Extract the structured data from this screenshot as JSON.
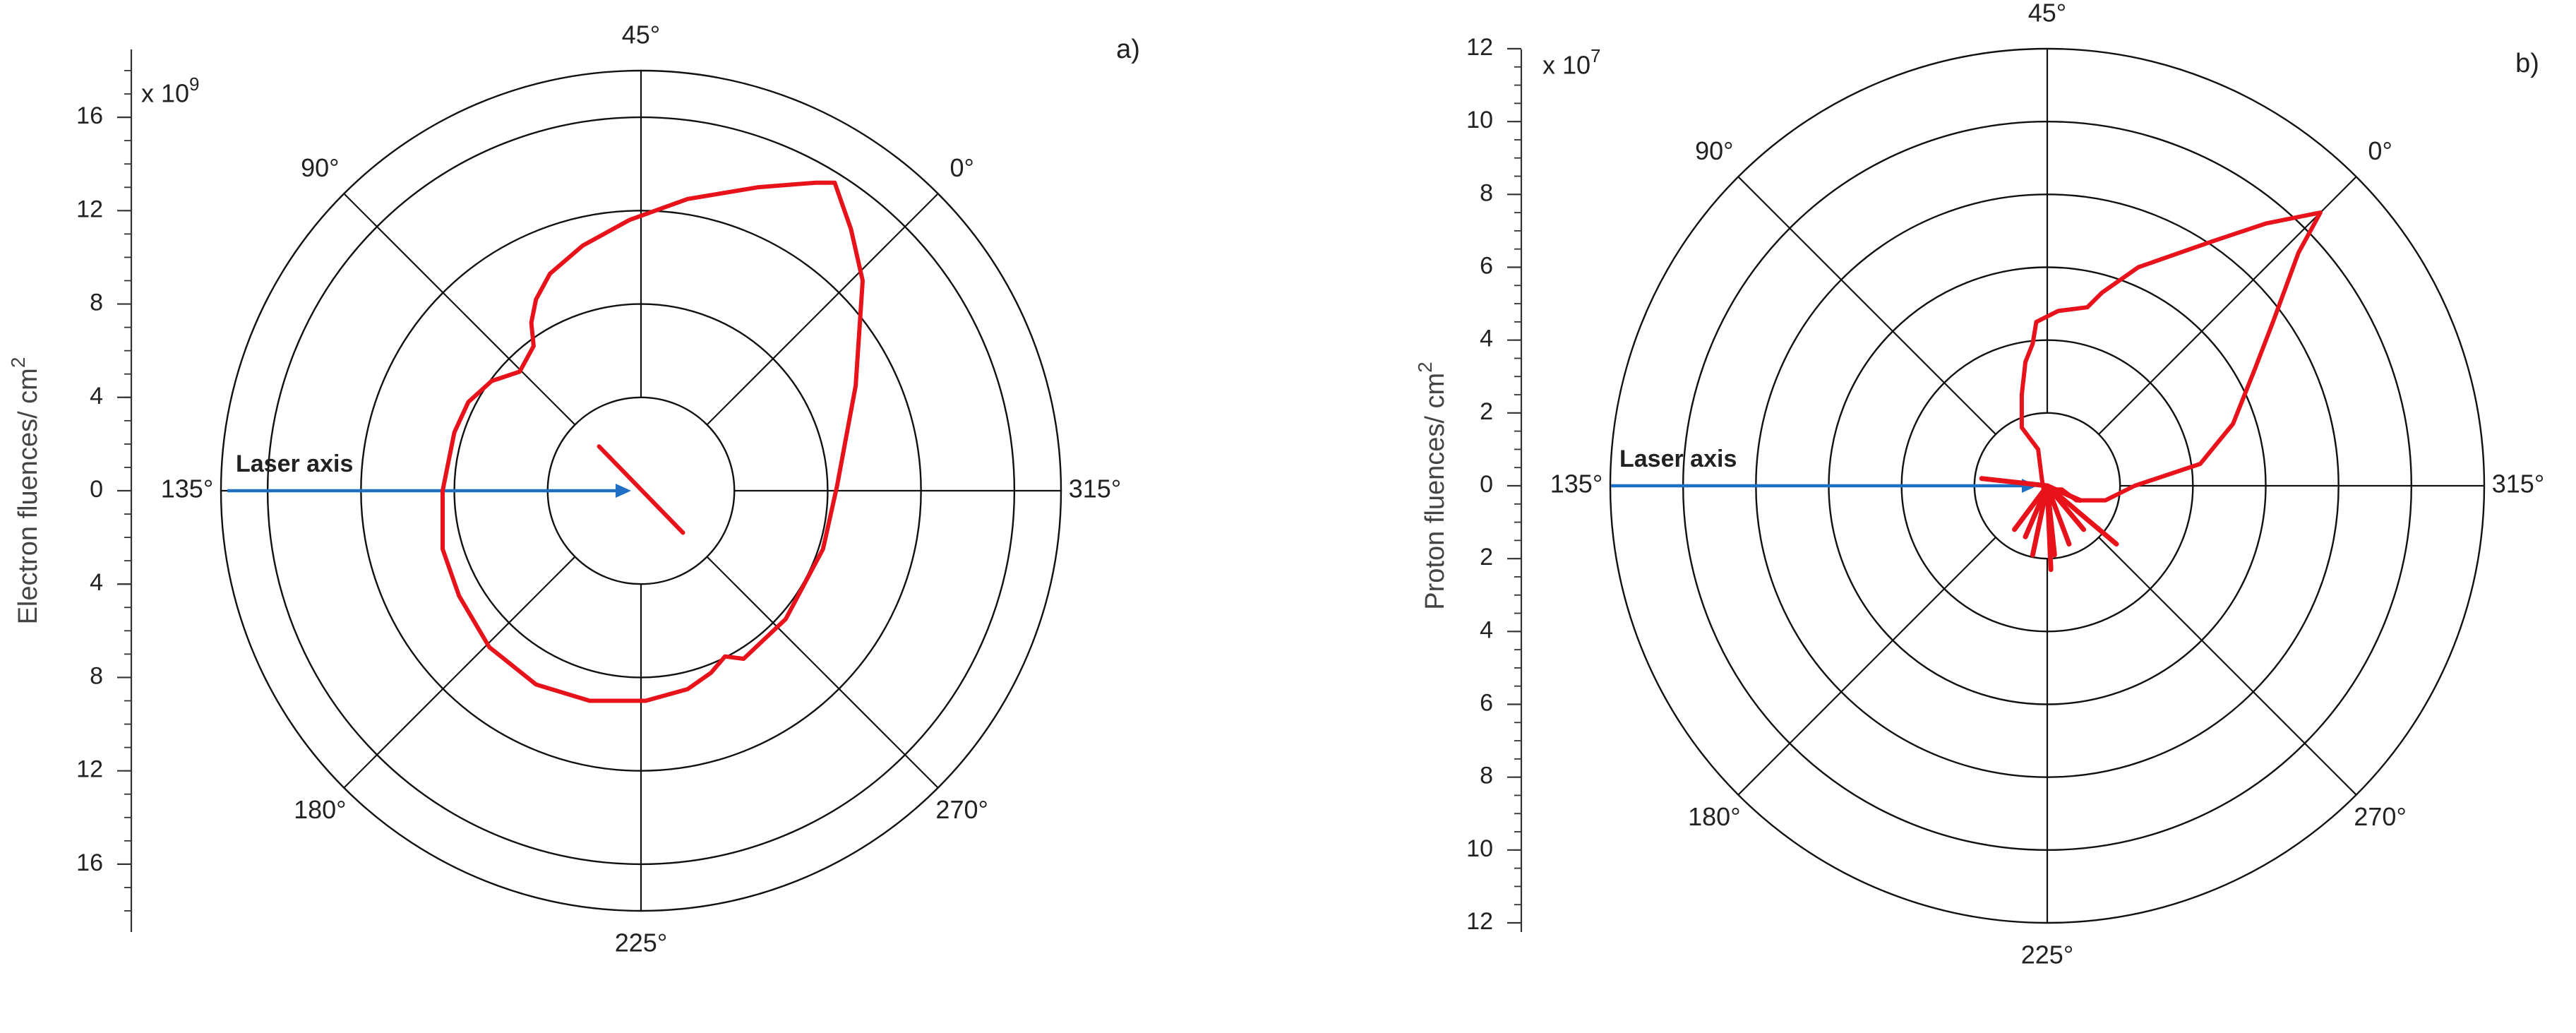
{
  "chart_data": [
    {
      "type": "polar",
      "panel_label": "a)",
      "multiplier": "x 10",
      "multiplier_exp": "9",
      "ylabel": "Electron fluences/ cm",
      "ylabel_sup": "2",
      "r_max": 18,
      "radial_ticks": [
        16,
        12,
        8,
        4,
        0,
        4,
        8,
        12,
        16
      ],
      "radial_tick_values": [
        16,
        12,
        8,
        4,
        0,
        -4,
        -8,
        -12,
        -16
      ],
      "ring_radii": [
        4,
        8,
        12,
        16,
        18
      ],
      "angle_labels": [
        "0°",
        "45°",
        "90°",
        "135°",
        "180°",
        "225°",
        "270°",
        "315°"
      ],
      "angle_label_positions_deg": [
        45,
        90,
        135,
        180,
        225,
        270,
        315,
        0
      ],
      "arrow_label": "Laser axis",
      "grid": true,
      "series": [
        {
          "color": "#e8121b",
          "points_xy": [
            [
              8.3,
              13.2
            ],
            [
              9.0,
              11.2
            ],
            [
              9.5,
              9.0
            ],
            [
              9.2,
              4.5
            ],
            [
              8.4,
              0.2
            ],
            [
              7.8,
              -2.5
            ],
            [
              6.2,
              -5.5
            ],
            [
              4.4,
              -7.2
            ],
            [
              3.6,
              -7.1
            ],
            [
              3.0,
              -7.8
            ],
            [
              2.0,
              -8.5
            ],
            [
              0.2,
              -9.0
            ],
            [
              -2.2,
              -9.0
            ],
            [
              -4.5,
              -8.3
            ],
            [
              -6.5,
              -6.7
            ],
            [
              -7.8,
              -4.5
            ],
            [
              -8.5,
              -2.5
            ],
            [
              -8.5,
              0.0
            ],
            [
              -8.0,
              2.5
            ],
            [
              -7.4,
              3.8
            ],
            [
              -6.4,
              4.7
            ],
            [
              -5.2,
              5.1
            ],
            [
              -4.6,
              6.2
            ],
            [
              -4.7,
              7.2
            ],
            [
              -4.5,
              8.2
            ],
            [
              -3.9,
              9.3
            ],
            [
              -2.5,
              10.5
            ],
            [
              -0.5,
              11.6
            ],
            [
              2.0,
              12.5
            ],
            [
              5.0,
              13.0
            ],
            [
              7.5,
              13.2
            ],
            [
              8.3,
              13.2
            ]
          ]
        },
        {
          "color": "#e8121b",
          "points_xy": [
            [
              -1.8,
              1.9
            ],
            [
              1.8,
              -1.8
            ]
          ]
        }
      ]
    },
    {
      "type": "polar",
      "panel_label": "b)",
      "multiplier": "x 10",
      "multiplier_exp": "7",
      "ylabel": "Proton fluences/ cm",
      "ylabel_sup": "2",
      "r_max": 12,
      "radial_ticks": [
        12,
        10,
        8,
        6,
        4,
        2,
        0,
        2,
        4,
        6,
        8,
        10,
        12
      ],
      "radial_tick_values": [
        12,
        10,
        8,
        6,
        4,
        2,
        0,
        -2,
        -4,
        -6,
        -8,
        -10,
        -12
      ],
      "ring_radii": [
        2,
        4,
        6,
        8,
        10,
        12
      ],
      "angle_labels": [
        "0°",
        "45°",
        "90°",
        "135°",
        "180°",
        "225°",
        "270°",
        "315°"
      ],
      "angle_label_positions_deg": [
        45,
        90,
        135,
        180,
        225,
        270,
        315,
        0
      ],
      "arrow_label": "Laser axis",
      "grid": true,
      "series": [
        {
          "color": "#e8121b",
          "points_xy": [
            [
              7.5,
              7.5
            ],
            [
              6.9,
              6.4
            ],
            [
              6.2,
              4.5
            ],
            [
              5.7,
              3.2
            ],
            [
              5.1,
              1.7
            ],
            [
              4.2,
              0.6
            ],
            [
              2.4,
              0.0
            ],
            [
              1.6,
              -0.4
            ],
            [
              0.8,
              -0.4
            ],
            [
              0.4,
              -0.1
            ],
            [
              -0.1,
              -0.1
            ],
            [
              -0.15,
              0.2
            ],
            [
              -0.25,
              1.0
            ],
            [
              -0.7,
              1.6
            ],
            [
              -0.7,
              2.5
            ],
            [
              -0.6,
              3.4
            ],
            [
              -0.4,
              3.9
            ],
            [
              -0.3,
              4.5
            ],
            [
              0.3,
              4.8
            ],
            [
              1.1,
              4.9
            ],
            [
              1.5,
              5.3
            ],
            [
              2.5,
              6.0
            ],
            [
              4.5,
              6.7
            ],
            [
              6.0,
              7.2
            ],
            [
              7.5,
              7.5
            ]
          ]
        },
        {
          "color": "#e8121b",
          "spikes_xy": [
            [
              -1.8,
              0.2
            ],
            [
              -0.9,
              -1.2
            ],
            [
              -0.6,
              -1.4
            ],
            [
              -0.4,
              -1.9
            ],
            [
              0.1,
              -2.3
            ],
            [
              0.2,
              -1.9
            ],
            [
              0.6,
              -1.6
            ],
            [
              1.0,
              -1.2
            ],
            [
              1.9,
              -1.6
            ],
            [
              0.9,
              -0.4
            ]
          ]
        }
      ]
    }
  ]
}
